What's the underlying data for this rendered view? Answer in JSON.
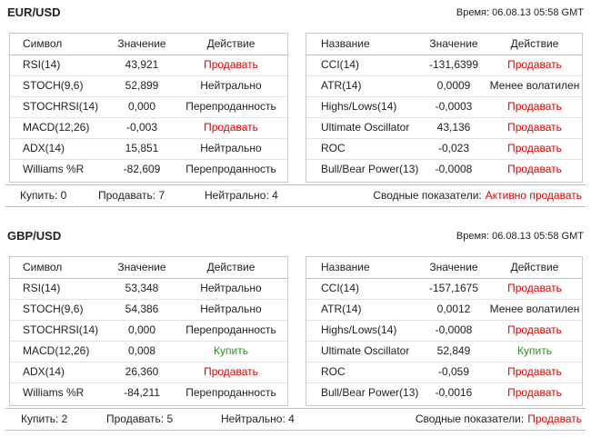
{
  "sections": [
    {
      "title": "EUR/USD",
      "time": "Время: 06.08.13 05:58 GMT",
      "left": {
        "headers": [
          "Символ",
          "Значение",
          "Действие"
        ],
        "rows": [
          {
            "name": "RSI(14)",
            "value": "43,921",
            "action": "Продавать",
            "color": "#e00000"
          },
          {
            "name": "STOCH(9,6)",
            "value": "52,899",
            "action": "Нейтрально",
            "color": "#222222"
          },
          {
            "name": "STOCHRSI(14)",
            "value": "0,000",
            "action": "Перепроданность",
            "color": "#222222"
          },
          {
            "name": "MACD(12,26)",
            "value": "-0,003",
            "action": "Продавать",
            "color": "#e00000"
          },
          {
            "name": "ADX(14)",
            "value": "15,851",
            "action": "Нейтрально",
            "color": "#222222"
          },
          {
            "name": "Williams %R",
            "value": "-82,609",
            "action": "Перепроданность",
            "color": "#222222"
          }
        ]
      },
      "right": {
        "headers": [
          "Название",
          "Значение",
          "Действие"
        ],
        "rows": [
          {
            "name": "CCI(14)",
            "value": "-131,6399",
            "action": "Продавать",
            "color": "#e00000"
          },
          {
            "name": "ATR(14)",
            "value": "0,0009",
            "action": "Менее волатилен",
            "color": "#222222"
          },
          {
            "name": "Highs/Lows(14)",
            "value": "-0,0003",
            "action": "Продавать",
            "color": "#e00000"
          },
          {
            "name": "Ultimate Oscillator",
            "value": "43,136",
            "action": "Продавать",
            "color": "#e00000"
          },
          {
            "name": "ROC",
            "value": "-0,023",
            "action": "Продавать",
            "color": "#e00000"
          },
          {
            "name": "Bull/Bear Power(13)",
            "value": "-0,0008",
            "action": "Продавать",
            "color": "#e00000"
          }
        ]
      },
      "footer": {
        "buy": "Купить: 0",
        "sell": "Продавать: 7",
        "neutral": "Нейтрально: 4",
        "summary_label": "Сводные показатели:",
        "summary_value": "Активно продавать",
        "summary_color": "#e00000"
      }
    },
    {
      "title": "GBP/USD",
      "time": "Время: 06.08.13 05:58 GMT",
      "left": {
        "headers": [
          "Символ",
          "Значение",
          "Действие"
        ],
        "rows": [
          {
            "name": "RSI(14)",
            "value": "53,348",
            "action": "Нейтрально",
            "color": "#222222"
          },
          {
            "name": "STOCH(9,6)",
            "value": "54,386",
            "action": "Нейтрально",
            "color": "#222222"
          },
          {
            "name": "STOCHRSI(14)",
            "value": "0,000",
            "action": "Перепроданность",
            "color": "#222222"
          },
          {
            "name": "MACD(12,26)",
            "value": "0,008",
            "action": "Купить",
            "color": "#229922"
          },
          {
            "name": "ADX(14)",
            "value": "26,360",
            "action": "Продавать",
            "color": "#e00000"
          },
          {
            "name": "Williams %R",
            "value": "-84,211",
            "action": "Перепроданность",
            "color": "#222222"
          }
        ]
      },
      "right": {
        "headers": [
          "Название",
          "Значение",
          "Действие"
        ],
        "rows": [
          {
            "name": "CCI(14)",
            "value": "-157,1675",
            "action": "Продавать",
            "color": "#e00000"
          },
          {
            "name": "ATR(14)",
            "value": "0,0012",
            "action": "Менее волатилен",
            "color": "#222222"
          },
          {
            "name": "Highs/Lows(14)",
            "value": "-0,0008",
            "action": "Продавать",
            "color": "#e00000"
          },
          {
            "name": "Ultimate Oscillator",
            "value": "52,849",
            "action": "Купить",
            "color": "#229922"
          },
          {
            "name": "ROC",
            "value": "-0,059",
            "action": "Продавать",
            "color": "#e00000"
          },
          {
            "name": "Bull/Bear Power(13)",
            "value": "-0,0016",
            "action": "Продавать",
            "color": "#e00000"
          }
        ]
      },
      "footer": {
        "buy": "Купить: 2",
        "sell": "Продавать: 5",
        "neutral": "Нейтрально: 4",
        "summary_label": "Сводные показатели:",
        "summary_value": "Продавать",
        "summary_color": "#e00000"
      }
    }
  ]
}
